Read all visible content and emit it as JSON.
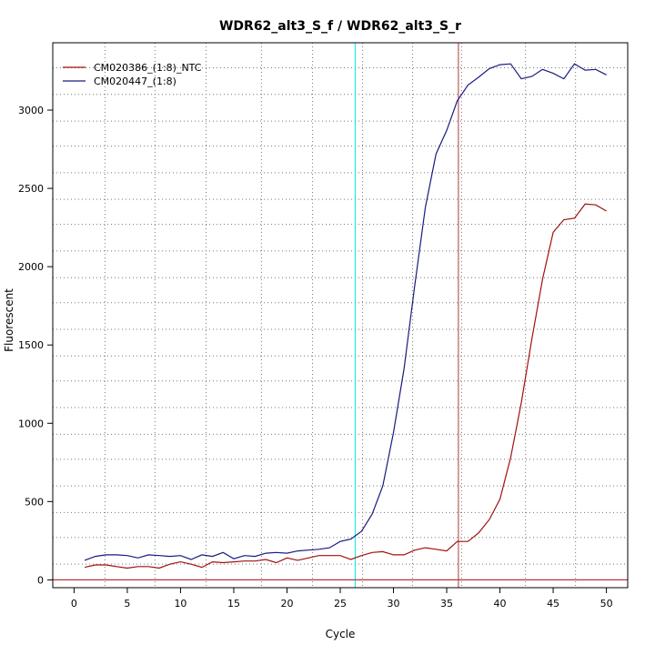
{
  "chart_data": {
    "type": "line",
    "title": "WDR62_alt3_S_f / WDR62_alt3_S_r",
    "xlabel": "Cycle",
    "ylabel": "Fluorescent",
    "xlim": [
      -2,
      52
    ],
    "ylim": [
      -50,
      3430
    ],
    "x_ticks": [
      0,
      5,
      10,
      15,
      20,
      25,
      30,
      35,
      40,
      45,
      50
    ],
    "y_ticks": [
      0,
      500,
      1000,
      1500,
      2000,
      2500,
      3000
    ],
    "x_grid": [
      2.9,
      7.6,
      12.4,
      17.6,
      22.4,
      27.1,
      31.8,
      36.4,
      42.4,
      47.1
    ],
    "y_grid": [
      -50,
      100,
      270,
      430,
      600,
      770,
      930,
      1100,
      1270,
      1430,
      1600,
      1770,
      1930,
      2100,
      2270,
      2430,
      2600,
      2770,
      2930,
      3100,
      3270,
      3430
    ],
    "threshold_y": 0,
    "vlines": [
      {
        "x": 26.4,
        "color": "#00e5e5"
      },
      {
        "x": 36.1,
        "color": "#b03a3a"
      }
    ],
    "legend": "top-left",
    "grid": true,
    "series": [
      {
        "name": "CM020386_(1:8)_NTC",
        "color": "#a01010",
        "x": [
          1,
          2,
          3,
          4,
          5,
          6,
          7,
          8,
          9,
          10,
          11,
          12,
          13,
          14,
          15,
          16,
          17,
          18,
          19,
          20,
          21,
          22,
          23,
          24,
          25,
          26,
          27,
          28,
          29,
          30,
          31,
          32,
          33,
          34,
          35,
          36,
          37,
          38,
          39,
          40,
          41,
          42,
          43,
          44,
          45,
          46,
          47,
          48,
          49,
          50
        ],
        "values": [
          80,
          95,
          95,
          85,
          75,
          85,
          85,
          75,
          100,
          115,
          100,
          80,
          115,
          110,
          115,
          120,
          120,
          130,
          110,
          140,
          125,
          140,
          155,
          155,
          155,
          130,
          155,
          175,
          180,
          160,
          160,
          190,
          205,
          195,
          185,
          245,
          245,
          300,
          385,
          515,
          780,
          1130,
          1540,
          1920,
          2220,
          2300,
          2310,
          2400,
          2395,
          2355
        ]
      },
      {
        "name": "CM020447_(1:8)",
        "color": "#1a1a80",
        "x": [
          1,
          2,
          3,
          4,
          5,
          6,
          7,
          8,
          9,
          10,
          11,
          12,
          13,
          14,
          15,
          16,
          17,
          18,
          19,
          20,
          21,
          22,
          23,
          24,
          25,
          26,
          27,
          28,
          29,
          30,
          31,
          32,
          33,
          34,
          35,
          36,
          37,
          38,
          39,
          40,
          41,
          42,
          43,
          44,
          45,
          46,
          47,
          48,
          49,
          50
        ],
        "values": [
          125,
          150,
          160,
          160,
          155,
          140,
          160,
          155,
          150,
          155,
          130,
          160,
          150,
          175,
          135,
          155,
          150,
          170,
          175,
          170,
          185,
          190,
          195,
          205,
          245,
          260,
          310,
          420,
          600,
          940,
          1350,
          1880,
          2380,
          2720,
          2870,
          3060,
          3160,
          3210,
          3265,
          3290,
          3295,
          3200,
          3215,
          3260,
          3235,
          3200,
          3295,
          3255,
          3260,
          3225
        ]
      }
    ]
  }
}
